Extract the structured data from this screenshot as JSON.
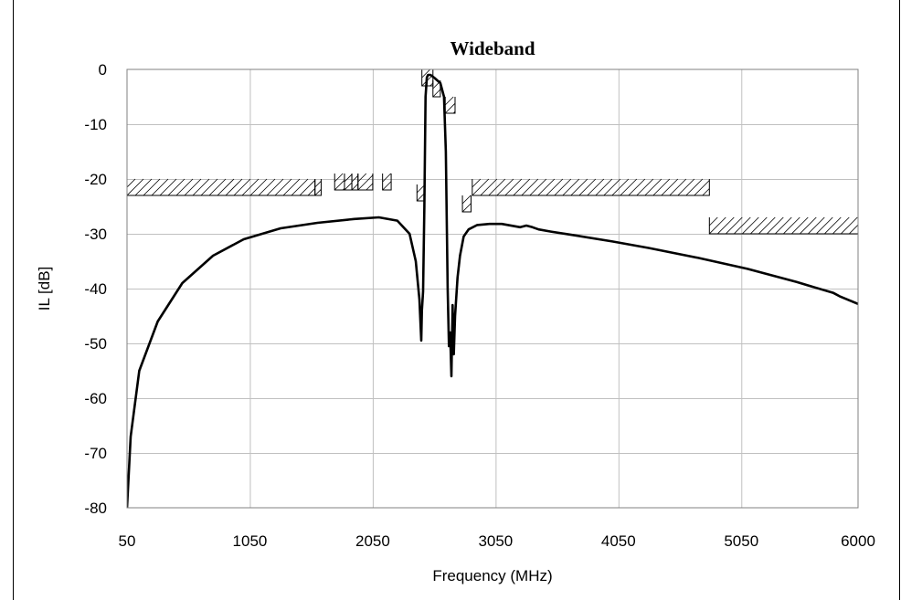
{
  "chart_data": {
    "type": "line",
    "title": "Wideband",
    "xlabel": "Frequency (MHz)",
    "ylabel": "IL [dB]",
    "xlim": [
      50,
      6000
    ],
    "ylim": [
      -80,
      0
    ],
    "xticks": [
      50,
      1050,
      2050,
      3050,
      4050,
      5050,
      6000
    ],
    "yticks": [
      0,
      -10,
      -20,
      -30,
      -40,
      -50,
      -60,
      -70,
      -80
    ],
    "grid": true,
    "series": [
      {
        "x": [
          50,
          80,
          150,
          300,
          500,
          750,
          1000,
          1300,
          1600,
          1900,
          2100,
          2250,
          2350,
          2400,
          2430,
          2445,
          2450,
          2460,
          2470,
          2480,
          2490,
          2500,
          2520,
          2550,
          2600,
          2630,
          2645,
          2660,
          2670,
          2680,
          2690,
          2700,
          2710,
          2720,
          2740,
          2760,
          2790,
          2830,
          2900,
          3000,
          3100,
          3250,
          3300,
          3350,
          3400,
          3500,
          3700,
          4000,
          4300,
          4700,
          5100,
          5500,
          5800,
          5850,
          6000
        ],
        "y": [
          -80,
          -67,
          -55,
          -46,
          -39,
          -34,
          -31,
          -29,
          -28,
          -27.3,
          -27,
          -27.6,
          -30,
          -35,
          -42,
          -49.5,
          -44,
          -40.5,
          -25,
          -5,
          -1.5,
          -1.0,
          -1.0,
          -1.5,
          -2.5,
          -5,
          -15,
          -40,
          -50.5,
          -48,
          -56,
          -43,
          -52,
          -45,
          -38,
          -34,
          -30.5,
          -29.2,
          -28.4,
          -28.2,
          -28.2,
          -28.8,
          -28.5,
          -28.8,
          -29.2,
          -29.6,
          -30.3,
          -31.4,
          -32.6,
          -34.4,
          -36.4,
          -38.8,
          -40.8,
          -41.4,
          -42.8
        ]
      }
    ],
    "masks": [
      {
        "x1": 50,
        "x2": 1580,
        "level": -23,
        "wall_top": -20
      },
      {
        "x1": 1580,
        "x2": 1630,
        "level": -23,
        "wall_top": -20
      },
      {
        "x1": 1740,
        "x2": 1820,
        "level": -22,
        "wall_top": -19
      },
      {
        "x1": 1820,
        "x2": 1880,
        "level": -22,
        "wall_top": -19
      },
      {
        "x1": 1880,
        "x2": 1930,
        "level": -22,
        "wall_top": -19
      },
      {
        "x1": 1930,
        "x2": 2050,
        "level": -22,
        "wall_top": -19
      },
      {
        "x1": 2130,
        "x2": 2200,
        "level": -22,
        "wall_top": -19
      },
      {
        "x1": 2410,
        "x2": 2470,
        "level": -24,
        "wall_top": -21
      },
      {
        "x1": 2450,
        "x2": 2540,
        "level": -3,
        "wall_top": 0
      },
      {
        "x1": 2540,
        "x2": 2600,
        "level": -5,
        "wall_top": -2
      },
      {
        "x1": 2640,
        "x2": 2720,
        "level": -8,
        "wall_top": -5
      },
      {
        "x1": 2780,
        "x2": 2850,
        "level": -26,
        "wall_top": -23
      },
      {
        "x1": 2860,
        "x2": 4790,
        "level": -23,
        "wall_top": -20
      },
      {
        "x1": 4790,
        "x2": 6000,
        "level": -30,
        "wall_top": -27
      }
    ]
  }
}
